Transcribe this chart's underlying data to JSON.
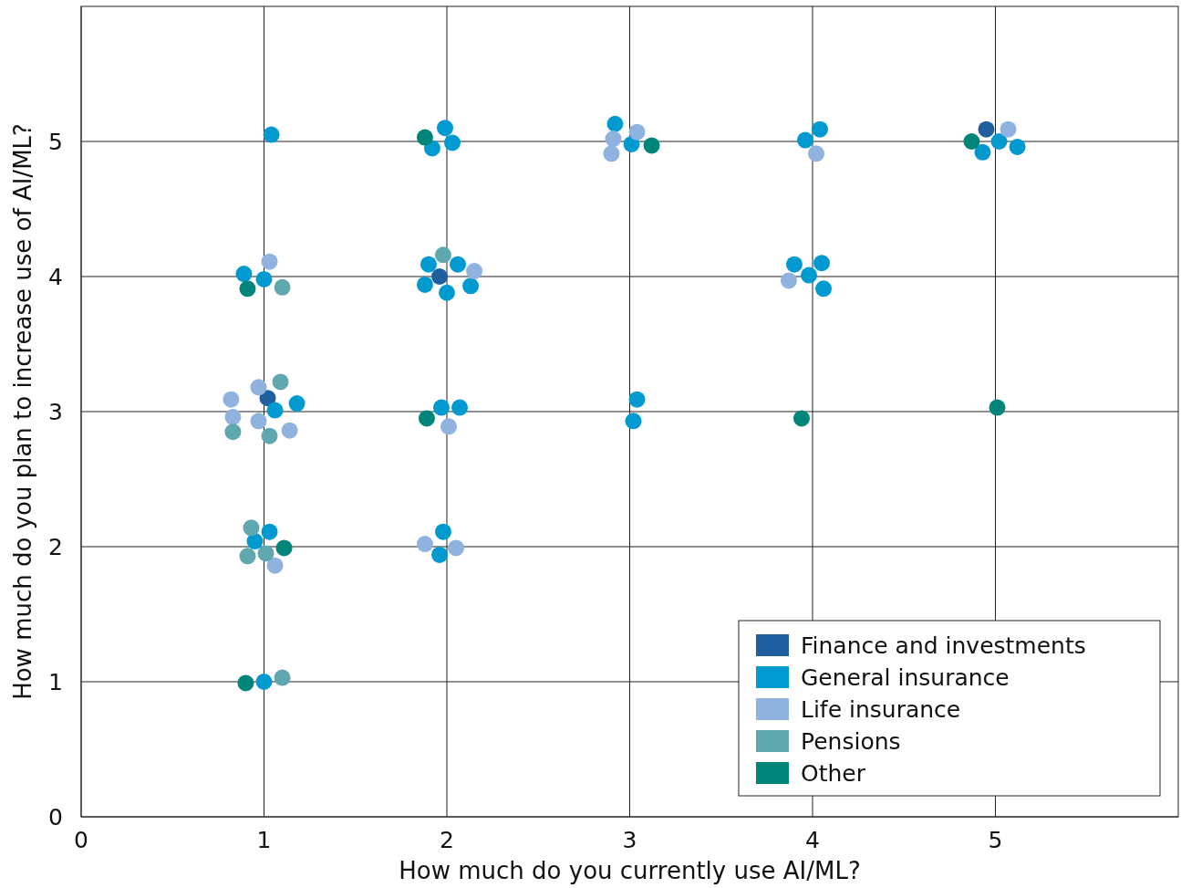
{
  "chart_data": {
    "type": "scatter",
    "xlabel": "How much do you currently use AI/ML?",
    "ylabel": "How much do you plan to increase use of AI/ML?",
    "xlim": [
      0,
      6
    ],
    "ylim": [
      0,
      6
    ],
    "xticks": [
      0,
      1,
      2,
      3,
      4,
      5
    ],
    "yticks": [
      0,
      1,
      2,
      3,
      4,
      5
    ],
    "grid": true,
    "legend": "bottom right",
    "marker": "circle",
    "series": [
      {
        "name": "Finance and investments",
        "color": "#1f5fa0",
        "x": [
          4.95,
          1.96,
          1.02
        ],
        "values": [
          5.09,
          4.0,
          3.1
        ]
      },
      {
        "name": "General insurance",
        "color": "#009ad0",
        "x": [
          1.04,
          1.99,
          1.92,
          2.03,
          2.92,
          3.01,
          4.04,
          3.96,
          4.93,
          5.02,
          5.12,
          0.89,
          1.0,
          1.9,
          2.06,
          1.88,
          2.0,
          2.13,
          3.9,
          3.98,
          4.05,
          4.06,
          1.18,
          1.06,
          1.97,
          2.07,
          3.04,
          3.02,
          1.03,
          0.95,
          1.98,
          1.96,
          1.0
        ],
        "values": [
          5.05,
          5.1,
          4.95,
          4.99,
          5.13,
          4.98,
          5.09,
          5.01,
          4.92,
          5.0,
          4.96,
          4.02,
          3.98,
          4.09,
          4.09,
          3.94,
          3.88,
          3.93,
          4.09,
          4.01,
          4.1,
          3.91,
          3.06,
          3.01,
          3.03,
          3.03,
          3.09,
          2.93,
          2.11,
          2.04,
          2.11,
          1.94,
          1.0
        ]
      },
      {
        "name": "Life insurance",
        "color": "#8fb2df",
        "x": [
          5.07,
          2.91,
          3.04,
          2.9,
          4.02,
          1.03,
          2.15,
          3.87,
          0.97,
          0.82,
          0.83,
          0.97,
          1.14,
          2.01,
          1.06,
          1.88,
          2.05
        ],
        "values": [
          5.09,
          5.02,
          5.07,
          4.91,
          4.91,
          4.11,
          4.04,
          3.97,
          3.18,
          3.09,
          2.96,
          2.93,
          2.86,
          2.89,
          1.86,
          2.02,
          1.99
        ]
      },
      {
        "name": "Pensions",
        "color": "#5fa8b0",
        "x": [
          1.98,
          1.1,
          1.09,
          0.83,
          1.03,
          0.93,
          0.91,
          1.01,
          1.1
        ],
        "values": [
          4.16,
          3.92,
          3.22,
          2.85,
          2.82,
          2.14,
          1.93,
          1.95,
          1.03
        ]
      },
      {
        "name": "Other",
        "color": "#00857a",
        "x": [
          1.88,
          3.12,
          4.87,
          0.91,
          1.89,
          3.94,
          5.01,
          1.11,
          0.9
        ],
        "values": [
          5.03,
          4.97,
          5.0,
          3.91,
          2.95,
          2.95,
          3.03,
          1.99,
          0.99
        ]
      }
    ]
  }
}
